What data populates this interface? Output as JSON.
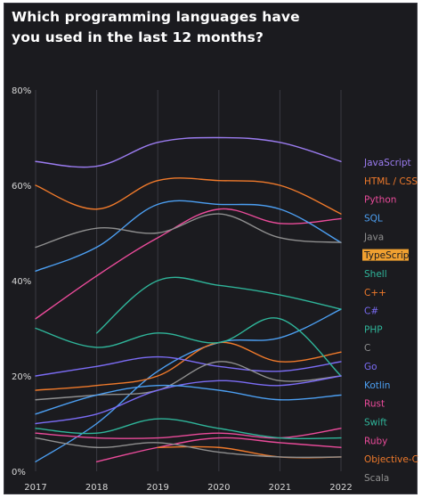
{
  "title": "Which programming languages have you used in the last 12 months?",
  "chart_data": {
    "type": "line",
    "title": "Which programming languages have you used in the last 12 months?",
    "xlabel": "",
    "ylabel": "",
    "x": [
      2017,
      2018,
      2019,
      2020,
      2021,
      2022
    ],
    "x_tick_labels": [
      "2017",
      "2018",
      "2019",
      "2020",
      "2021",
      "2022"
    ],
    "y_tick_labels": [
      "0%",
      "20%",
      "40%",
      "60%",
      "80%"
    ],
    "y_ticks": [
      0,
      20,
      40,
      60,
      80
    ],
    "ylim": [
      0,
      80
    ],
    "grid": "vertical",
    "legend": "right end labels",
    "series": [
      {
        "name": "JavaScript",
        "color": "#9b7cf0",
        "values": [
          65,
          64,
          69,
          70,
          69,
          65
        ]
      },
      {
        "name": "HTML / CSS",
        "color": "#f07a2b",
        "values": [
          60,
          55,
          61,
          61,
          60,
          54
        ]
      },
      {
        "name": "Python",
        "color": "#ea4b9a",
        "values": [
          32,
          41,
          49,
          55,
          52,
          53
        ]
      },
      {
        "name": "SQL",
        "color": "#4c9ff2",
        "values": [
          42,
          47,
          56,
          56,
          55,
          48
        ]
      },
      {
        "name": "Java",
        "color": "#8f8f8f",
        "values": [
          47,
          51,
          50,
          54,
          49,
          48
        ]
      },
      {
        "name": "TypeScript",
        "color": "#4c9ff2",
        "values": [
          2,
          10,
          21,
          27,
          28,
          34
        ]
      },
      {
        "name": "Shell",
        "color": "#2fb59a",
        "values": [
          null,
          29,
          40,
          39,
          37,
          34
        ]
      },
      {
        "name": "C++",
        "color": "#f07a2b",
        "values": [
          17,
          18,
          20,
          27,
          23,
          25
        ]
      },
      {
        "name": "C#",
        "color": "#7b6cf5",
        "values": [
          20,
          22,
          24,
          22,
          21,
          23
        ]
      },
      {
        "name": "PHP",
        "color": "#2fb59a",
        "values": [
          30,
          26,
          29,
          27,
          32,
          20
        ]
      },
      {
        "name": "C",
        "color": "#8f8f8f",
        "values": [
          15,
          16,
          17,
          23,
          19,
          20
        ]
      },
      {
        "name": "Go",
        "color": "#7b6cf5",
        "values": [
          10,
          12,
          17,
          19,
          18,
          20
        ]
      },
      {
        "name": "Kotlin",
        "color": "#4c9ff2",
        "values": [
          12,
          16,
          18,
          17,
          15,
          16
        ]
      },
      {
        "name": "Rust",
        "color": "#ea4b9a",
        "values": [
          8,
          7,
          7,
          8,
          7,
          9
        ]
      },
      {
        "name": "Swift",
        "color": "#2fb59a",
        "values": [
          9,
          8,
          11,
          9,
          7,
          7
        ]
      },
      {
        "name": "Ruby",
        "color": "#ea4b9a",
        "values": [
          null,
          2,
          5,
          7,
          6,
          5
        ]
      },
      {
        "name": "Objective-C",
        "color": "#f07a2b",
        "values": [
          null,
          null,
          5,
          5,
          3,
          3
        ]
      },
      {
        "name": "Scala",
        "color": "#8f8f8f",
        "values": [
          7,
          5,
          6,
          4,
          3,
          3
        ]
      }
    ],
    "highlight": {
      "series": "TypeScript",
      "color": "#f0a030"
    }
  }
}
